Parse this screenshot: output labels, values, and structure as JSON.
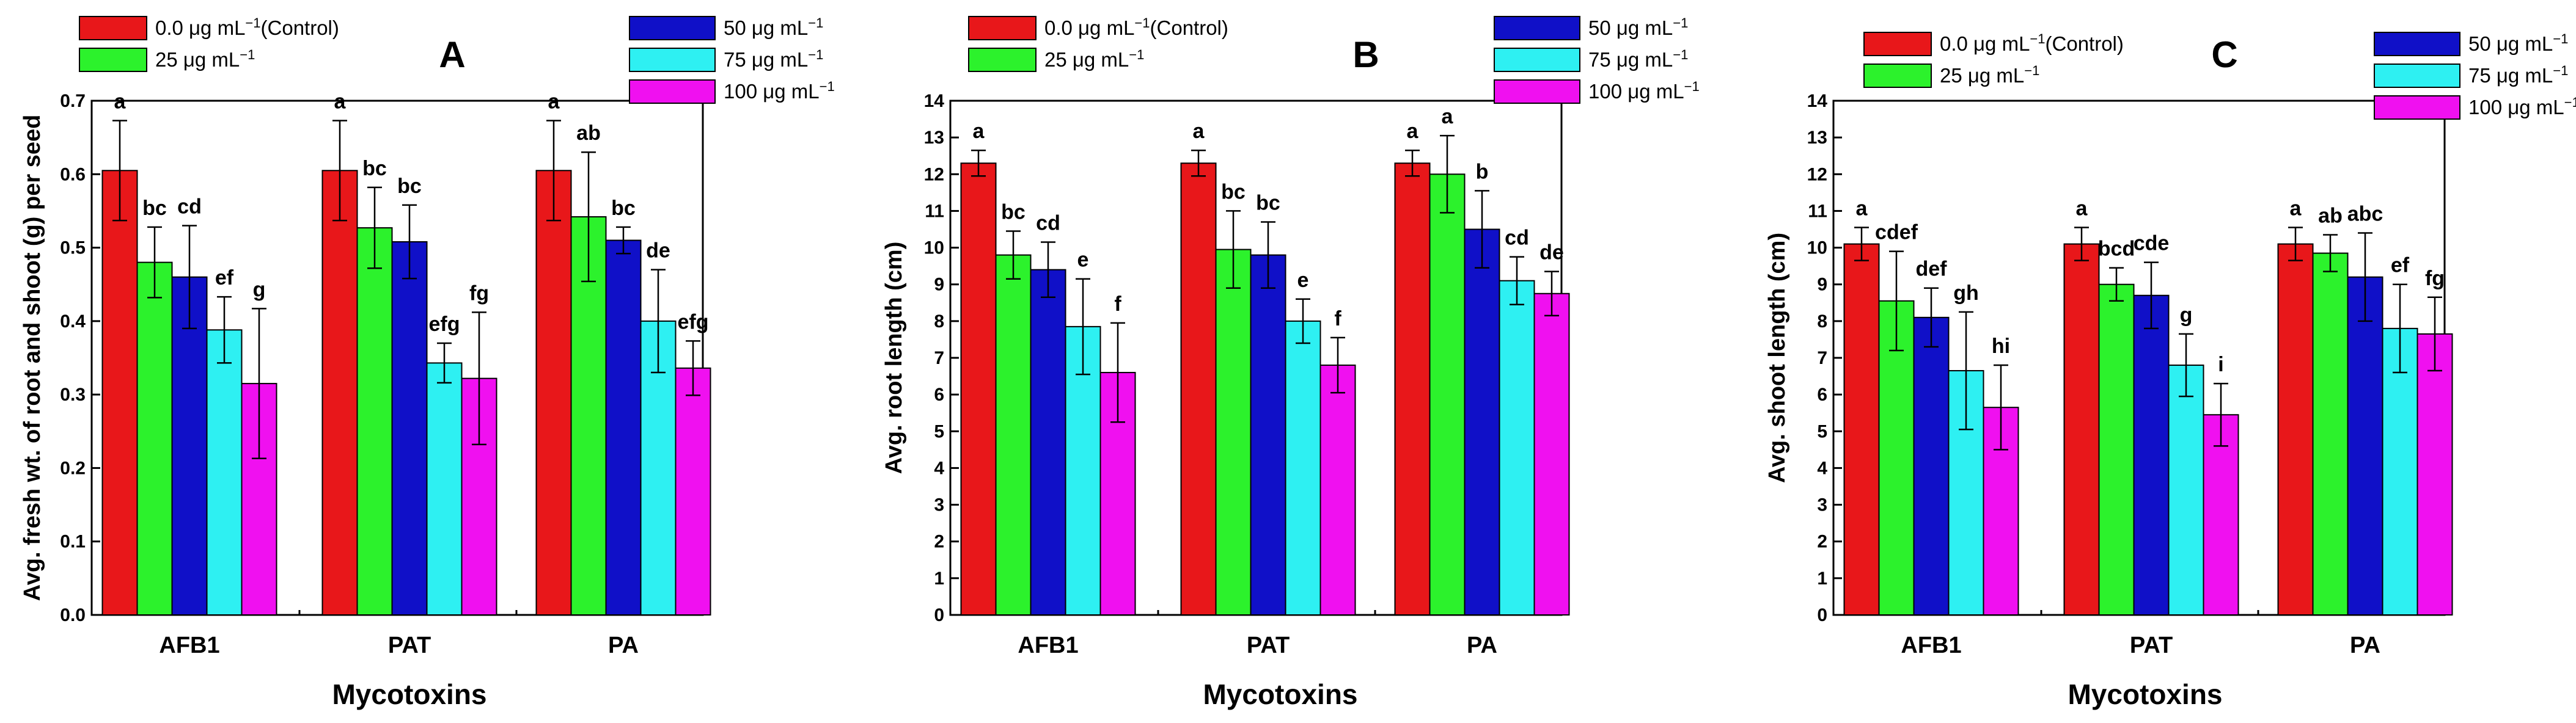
{
  "colors": [
    "#e8171a",
    "#2cf22c",
    "#1010c8",
    "#2ef0f2",
    "#f010f0"
  ],
  "legend": {
    "left": [
      "0.0 μg mL",
      "25 μg mL"
    ],
    "right": [
      "50 μg mL",
      "75 μg mL",
      "100 μg mL"
    ],
    "superscript": "−1",
    "control_suffix": "(Control)"
  },
  "chart_data": [
    {
      "type": "bar",
      "panel_letter": "A",
      "xlabel": "Mycotoxins",
      "ylabel": "Avg. fresh wt. of root and shoot (g) per seed",
      "ylim": [
        0,
        0.7
      ],
      "yticks": [
        "0.0",
        "0.1",
        "0.2",
        "0.3",
        "0.4",
        "0.5",
        "0.6",
        "0.7"
      ],
      "categories": [
        "AFB1",
        "PAT",
        "PA"
      ],
      "series": [
        {
          "name": "0.0 μg mL−1 (Control)",
          "values": [
            0.605,
            0.605,
            0.605
          ],
          "errors": [
            0.068,
            0.068,
            0.068
          ],
          "labels": [
            "a",
            "a",
            "a"
          ]
        },
        {
          "name": "25 μg mL−1",
          "values": [
            0.48,
            0.527,
            0.542
          ],
          "errors": [
            0.048,
            0.055,
            0.088
          ],
          "labels": [
            "bc",
            "bc",
            "ab"
          ]
        },
        {
          "name": "50 μg mL−1",
          "values": [
            0.46,
            0.508,
            0.51
          ],
          "errors": [
            0.07,
            0.05,
            0.018
          ],
          "labels": [
            "cd",
            "bc",
            "bc"
          ]
        },
        {
          "name": "75 μg mL−1",
          "values": [
            0.388,
            0.343,
            0.4
          ],
          "errors": [
            0.045,
            0.027,
            0.07
          ],
          "labels": [
            "ef",
            "efg",
            "de"
          ]
        },
        {
          "name": "100 μg mL−1",
          "values": [
            0.315,
            0.322,
            0.336
          ],
          "errors": [
            0.102,
            0.09,
            0.037
          ],
          "labels": [
            "g",
            "fg",
            "efg"
          ]
        }
      ]
    },
    {
      "type": "bar",
      "panel_letter": "B",
      "xlabel": "Mycotoxins",
      "ylabel": "Avg.  root length (cm)",
      "ylim": [
        0,
        14
      ],
      "yticks": [
        "0",
        "1",
        "2",
        "3",
        "4",
        "5",
        "6",
        "7",
        "8",
        "9",
        "10",
        "11",
        "12",
        "13",
        "14"
      ],
      "categories": [
        "AFB1",
        "PAT",
        "PA"
      ],
      "series": [
        {
          "name": "0.0 μg mL−1 (Control)",
          "values": [
            12.3,
            12.3,
            12.3
          ],
          "errors": [
            0.35,
            0.35,
            0.35
          ],
          "labels": [
            "a",
            "a",
            "a"
          ]
        },
        {
          "name": "25 μg mL−1",
          "values": [
            9.8,
            9.95,
            12.0
          ],
          "errors": [
            0.65,
            1.05,
            1.05
          ],
          "labels": [
            "bc",
            "bc",
            "a"
          ]
        },
        {
          "name": "50 μg mL−1",
          "values": [
            9.4,
            9.8,
            10.5
          ],
          "errors": [
            0.75,
            0.9,
            1.05
          ],
          "labels": [
            "cd",
            "bc",
            "b"
          ]
        },
        {
          "name": "75 μg mL−1",
          "values": [
            7.85,
            8.0,
            9.1
          ],
          "errors": [
            1.3,
            0.6,
            0.65
          ],
          "labels": [
            "e",
            "e",
            "cd"
          ]
        },
        {
          "name": "100 μg mL−1",
          "values": [
            6.6,
            6.8,
            8.75
          ],
          "errors": [
            1.35,
            0.75,
            0.6
          ],
          "labels": [
            "f",
            "f",
            "de"
          ]
        }
      ]
    },
    {
      "type": "bar",
      "panel_letter": "C",
      "xlabel": "Mycotoxins",
      "ylabel": "Avg.  shoot length (cm)",
      "ylim": [
        0,
        14
      ],
      "yticks": [
        "0",
        "1",
        "2",
        "3",
        "4",
        "5",
        "6",
        "7",
        "8",
        "9",
        "10",
        "11",
        "12",
        "13",
        "14"
      ],
      "categories": [
        "AFB1",
        "PAT",
        "PA"
      ],
      "series": [
        {
          "name": "0.0 μg mL−1 (Control)",
          "values": [
            10.1,
            10.1,
            10.1
          ],
          "errors": [
            0.45,
            0.45,
            0.45
          ],
          "labels": [
            "a",
            "a",
            "a"
          ]
        },
        {
          "name": "25 μg mL−1",
          "values": [
            8.55,
            9.0,
            9.85
          ],
          "errors": [
            1.35,
            0.45,
            0.5
          ],
          "labels": [
            "cdef",
            "bcd",
            "ab"
          ]
        },
        {
          "name": "50 μg mL−1",
          "values": [
            8.1,
            8.7,
            9.2
          ],
          "errors": [
            0.8,
            0.9,
            1.2
          ],
          "labels": [
            "def",
            "cde",
            "abc"
          ]
        },
        {
          "name": "75 μg mL−1",
          "values": [
            6.65,
            6.8,
            7.8
          ],
          "errors": [
            1.6,
            0.85,
            1.2
          ],
          "labels": [
            "gh",
            "g",
            "ef"
          ]
        },
        {
          "name": "100 μg mL−1",
          "values": [
            5.65,
            5.45,
            7.65
          ],
          "errors": [
            1.15,
            0.85,
            1.0
          ],
          "labels": [
            "hi",
            "i",
            "fg"
          ]
        }
      ]
    }
  ]
}
